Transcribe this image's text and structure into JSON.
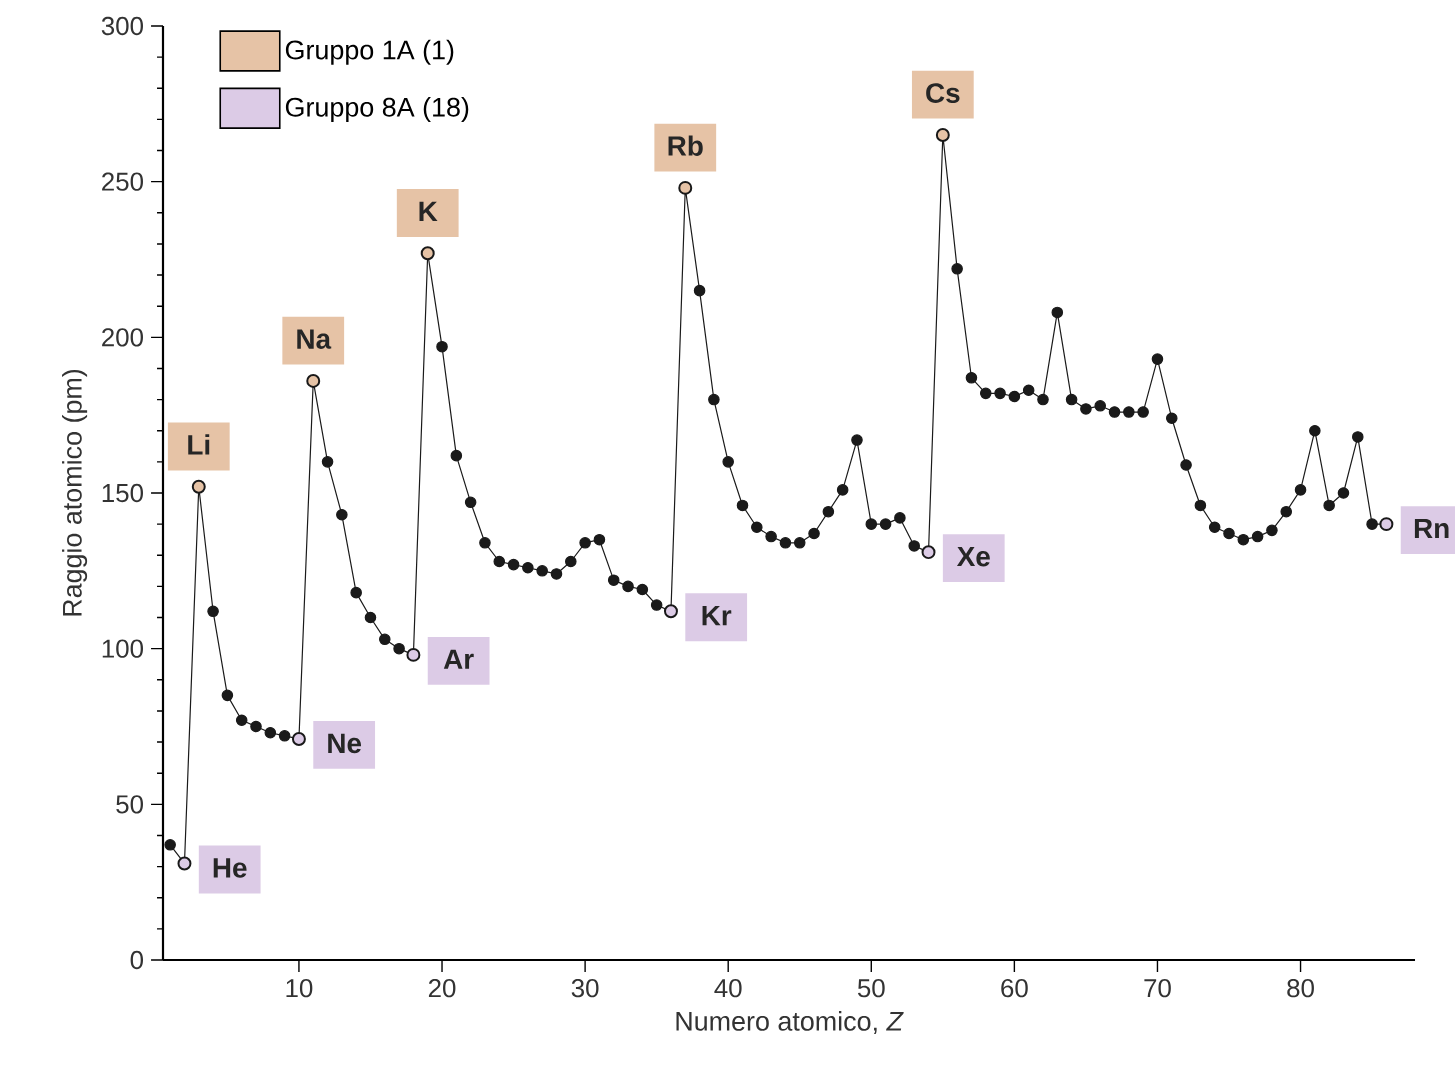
{
  "chart_data": {
    "type": "line",
    "xlabel": "Numero atomico, *Z*",
    "ylabel": "Raggio atomico (pm)",
    "xlim": [
      0.5,
      88
    ],
    "ylim": [
      0,
      300
    ],
    "xticks": [
      10,
      20,
      30,
      40,
      50,
      60,
      70,
      80
    ],
    "yticks": [
      0,
      {
        "value": 10,
        "label": null
      },
      {
        "value": 20,
        "label": null
      },
      {
        "value": 30,
        "label": null
      },
      {
        "value": 40,
        "label": null
      },
      50,
      {
        "value": 60,
        "label": null
      },
      {
        "value": 70,
        "label": null
      },
      {
        "value": 80,
        "label": null
      },
      {
        "value": 90,
        "label": null
      },
      100,
      {
        "value": 110,
        "label": null
      },
      {
        "value": 120,
        "label": null
      },
      {
        "value": 130,
        "label": null
      },
      {
        "value": 140,
        "label": null
      },
      150,
      {
        "value": 160,
        "label": null
      },
      {
        "value": 170,
        "label": null
      },
      {
        "value": 180,
        "label": null
      },
      {
        "value": 190,
        "label": null
      },
      200,
      {
        "value": 210,
        "label": null
      },
      {
        "value": 220,
        "label": null
      },
      {
        "value": 230,
        "label": null
      },
      {
        "value": 240,
        "label": null
      },
      250,
      {
        "value": 260,
        "label": null
      },
      {
        "value": 270,
        "label": null
      },
      {
        "value": 280,
        "label": null
      },
      {
        "value": 290,
        "label": null
      },
      300
    ],
    "marker": "circle",
    "legend": "top left",
    "grid": false,
    "x": [
      1,
      2,
      3,
      4,
      5,
      6,
      7,
      8,
      9,
      10,
      11,
      12,
      13,
      14,
      15,
      16,
      17,
      18,
      19,
      20,
      21,
      22,
      23,
      24,
      25,
      26,
      27,
      28,
      29,
      30,
      31,
      32,
      33,
      34,
      35,
      36,
      37,
      38,
      39,
      40,
      41,
      42,
      43,
      44,
      45,
      46,
      47,
      48,
      49,
      50,
      51,
      52,
      53,
      54,
      55,
      56,
      57,
      58,
      59,
      60,
      61,
      62,
      63,
      64,
      65,
      66,
      67,
      68,
      69,
      70,
      71,
      72,
      73,
      74,
      75,
      76,
      77,
      78,
      79,
      80,
      81,
      82,
      83,
      84,
      85,
      86
    ],
    "series": [
      {
        "color": "#1a1a1a",
        "values": [
          37,
          31,
          152,
          112,
          85,
          77,
          75,
          73,
          72,
          71,
          186,
          160,
          143,
          118,
          110,
          103,
          100,
          98,
          227,
          197,
          162,
          147,
          134,
          128,
          127,
          126,
          125,
          124,
          128,
          134,
          135,
          122,
          120,
          119,
          114,
          112,
          248,
          215,
          180,
          160,
          146,
          139,
          136,
          134,
          134,
          137,
          144,
          151,
          167,
          140,
          140,
          142,
          133,
          131,
          265,
          222,
          187,
          182,
          182,
          181,
          183,
          180,
          208,
          180,
          177,
          178,
          176,
          176,
          176,
          193,
          174,
          159,
          146,
          139,
          137,
          135,
          136,
          138,
          144,
          151,
          170,
          146,
          150,
          168,
          140,
          140
        ]
      },
      {
        "type": "scatter",
        "name": "Gruppo 1A (1)",
        "color": "#e6c3a6",
        "x": [
          3,
          11,
          19,
          37,
          55
        ],
        "values": [
          152,
          186,
          227,
          248,
          265
        ],
        "value_labels": [
          "Li",
          "Na",
          "K",
          "Rb",
          "Cs"
        ]
      },
      {
        "type": "scatter",
        "name": "Gruppo 8A (18)",
        "color": "#dccbe6",
        "x": [
          2,
          10,
          18,
          36,
          54,
          86
        ],
        "values": [
          31,
          71,
          98,
          112,
          131,
          140
        ],
        "value_labels": [
          "He",
          "Ne",
          "Ar",
          "Kr",
          "Xe",
          "Rn"
        ]
      }
    ]
  }
}
